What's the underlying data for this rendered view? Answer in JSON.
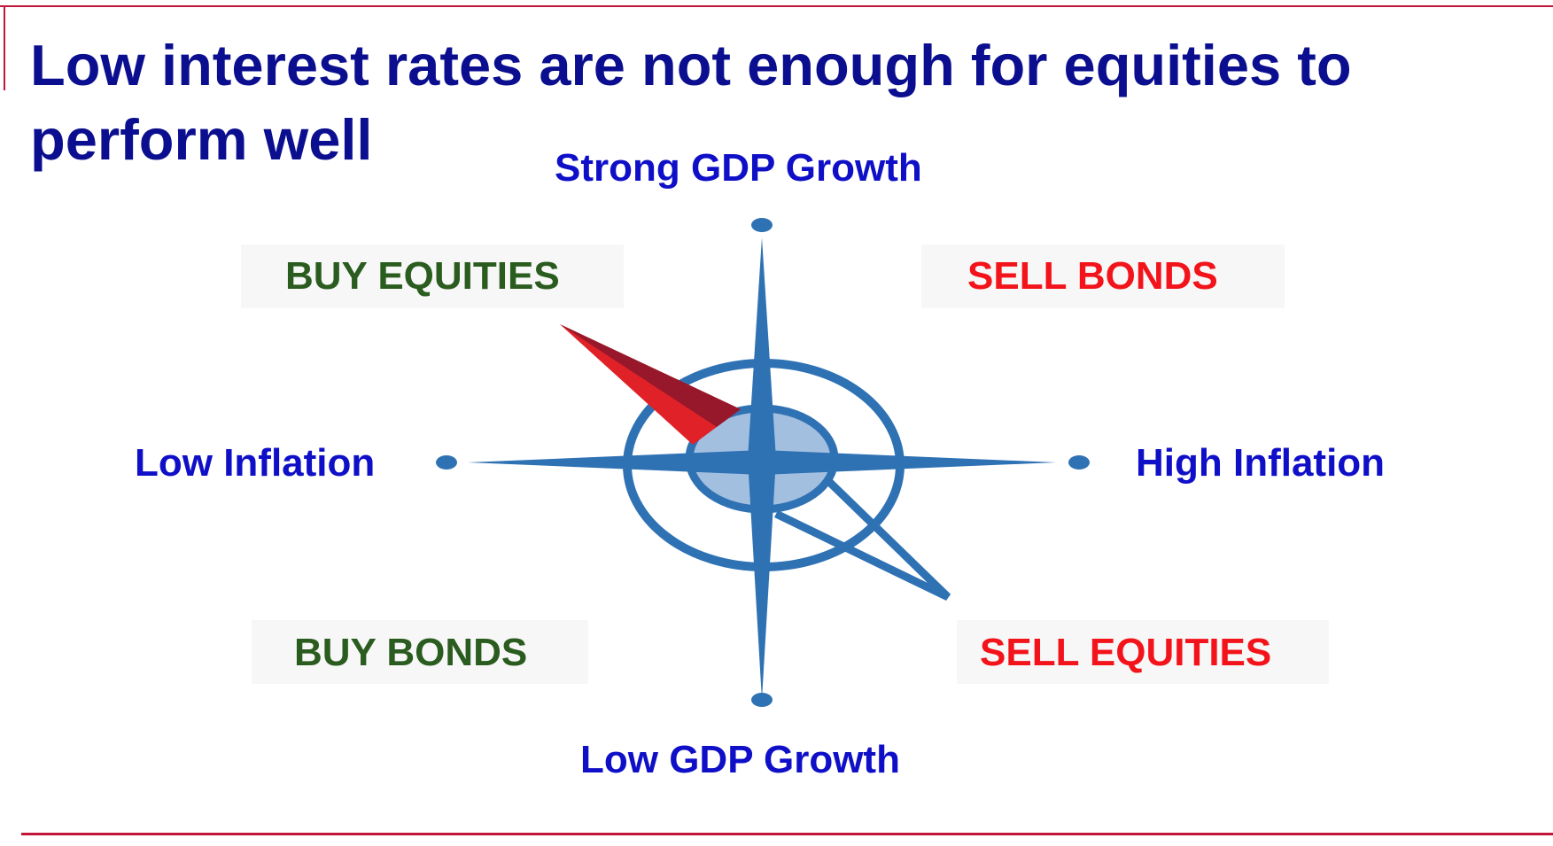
{
  "slide": {
    "title": "Low interest rates are not enough for equities to perform well"
  },
  "compass": {
    "north": "Strong GDP Growth",
    "south": "Low GDP Growth",
    "west": "Low Inflation",
    "east": "High Inflation"
  },
  "quadrants": {
    "top_left": "BUY EQUITIES",
    "top_right": "SELL BONDS",
    "bottom_left": "BUY BONDS",
    "bottom_right": "SELL EQUITIES"
  },
  "colors": {
    "title": "#0b0f8f",
    "axis_label": "#0f0fc8",
    "buy": "#2b5c1f",
    "sell": "#f2141a",
    "compass_blue": "#2f72b4",
    "compass_fill": "#a3bfe0",
    "needle_red": "#e02228",
    "needle_dark": "#96182a",
    "rule": "#c2173a"
  },
  "icons": [
    "compass-rose-icon",
    "compass-needle-icon"
  ]
}
